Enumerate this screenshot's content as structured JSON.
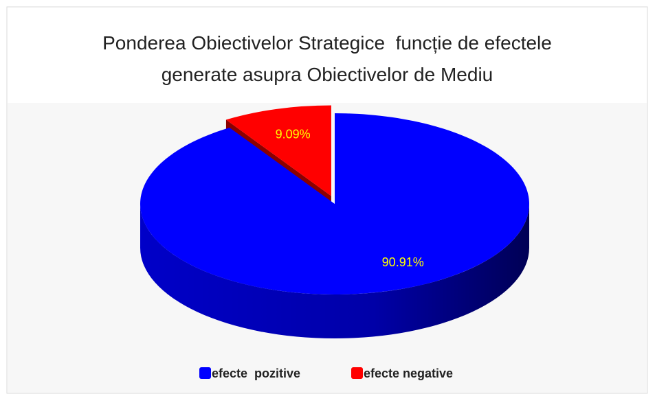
{
  "chart_data": {
    "type": "pie",
    "title": "Ponderea Obiectivelor Strategice  funcție de efectele generate asupra Obiectivelor de Mediu",
    "series": [
      {
        "name": "efecte  pozitive",
        "color": "#0000ff",
        "values": [
          90.91
        ],
        "value_labels": [
          "90.91%"
        ]
      },
      {
        "name": "efecte negative",
        "color": "#ff0000",
        "values": [
          9.09
        ],
        "value_labels": [
          "9.09%"
        ]
      }
    ],
    "exploded": [
      false,
      true
    ],
    "label_color": "#ffff00",
    "legend": "bottom"
  }
}
